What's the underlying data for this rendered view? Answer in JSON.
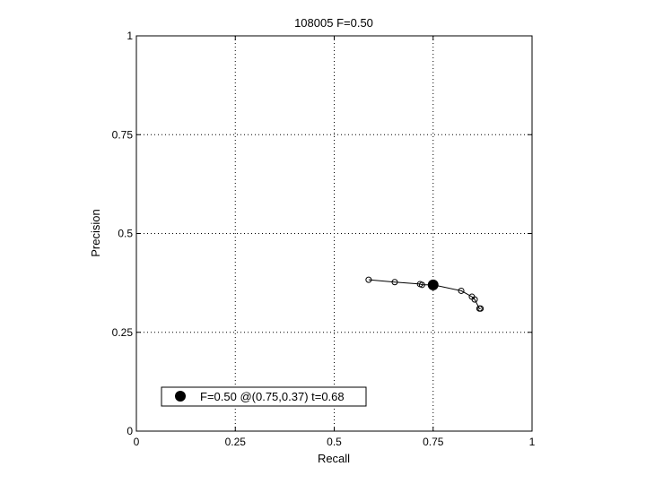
{
  "chart_data": {
    "type": "line",
    "title": "108005 F=0.50",
    "xlabel": "Recall",
    "ylabel": "Precision",
    "xlim": [
      0,
      1
    ],
    "ylim": [
      0,
      1
    ],
    "grid": true,
    "x_ticks": [
      0,
      0.25,
      0.5,
      0.75,
      1
    ],
    "x_tick_labels": [
      "0",
      "0.25",
      "0.5",
      "0.75",
      "1"
    ],
    "y_ticks": [
      0,
      0.25,
      0.5,
      0.75,
      1
    ],
    "y_tick_labels": [
      "0",
      "0.25",
      "0.5",
      "0.75",
      "1"
    ],
    "series": [
      {
        "x": [
          0.587,
          0.653,
          0.717,
          0.722,
          0.75,
          0.821,
          0.848,
          0.855,
          0.867,
          0.87
        ],
        "y": [
          0.383,
          0.377,
          0.372,
          0.37,
          0.37,
          0.355,
          0.34,
          0.333,
          0.31,
          0.31
        ],
        "marker": "open-circle",
        "color": "#000000"
      }
    ],
    "highlight_point": {
      "x": 0.75,
      "y": 0.37,
      "marker": "filled-circle",
      "color": "#000000"
    },
    "legend": {
      "entries": [
        "F=0.50 @(0.75,0.37) t=0.68"
      ],
      "placement": "bottom-left"
    }
  }
}
